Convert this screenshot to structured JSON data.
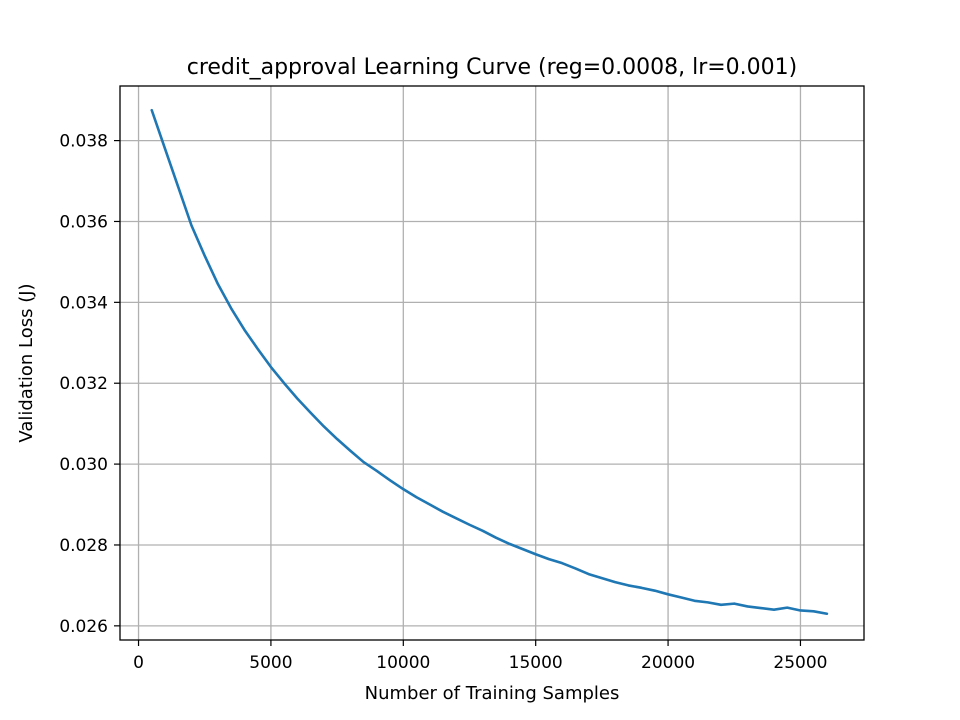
{
  "colors": {
    "series": "#1f77b4",
    "grid": "#b0b0b0",
    "frame": "#000000",
    "background": "#ffffff"
  },
  "chart_data": {
    "type": "line",
    "title": "credit_approval Learning Curve (reg=0.0008, lr=0.001)",
    "xlabel": "Number of Training Samples",
    "ylabel": "Validation Loss (J)",
    "xlim": [
      -700,
      27400
    ],
    "ylim": [
      0.02565,
      0.03935
    ],
    "grid": true,
    "legend": "none",
    "xticks": [
      0,
      5000,
      10000,
      15000,
      20000,
      25000
    ],
    "xtick_labels": [
      "0",
      "5000",
      "10000",
      "15000",
      "20000",
      "25000"
    ],
    "yticks": [
      0.026,
      0.028,
      0.03,
      0.032,
      0.034,
      0.036,
      0.038
    ],
    "ytick_labels": [
      "0.026",
      "0.028",
      "0.030",
      "0.032",
      "0.034",
      "0.036",
      "0.038"
    ],
    "series": [
      {
        "x": [
          500,
          1000,
          1500,
          2000,
          2500,
          3000,
          3500,
          4000,
          4500,
          5000,
          5500,
          6000,
          6500,
          7000,
          7500,
          8000,
          8500,
          9000,
          9500,
          10000,
          10500,
          11000,
          11500,
          12000,
          12500,
          13000,
          13500,
          14000,
          14500,
          15000,
          15500,
          16000,
          16500,
          17000,
          17500,
          18000,
          18500,
          19000,
          19500,
          20000,
          20500,
          21000,
          21500,
          22000,
          22500,
          23000,
          23500,
          24000,
          24500,
          25000,
          25500,
          26000
        ],
        "y": [
          0.03875,
          0.0378,
          0.03685,
          0.0359,
          0.03515,
          0.03445,
          0.03385,
          0.03332,
          0.03285,
          0.0324,
          0.032,
          0.03162,
          0.03127,
          0.03093,
          0.03062,
          0.03033,
          0.03005,
          0.02983,
          0.0296,
          0.02938,
          0.02918,
          0.029,
          0.02882,
          0.02866,
          0.0285,
          0.02835,
          0.02818,
          0.02803,
          0.0279,
          0.02777,
          0.02765,
          0.02755,
          0.02742,
          0.02728,
          0.02718,
          0.02708,
          0.027,
          0.02694,
          0.02687,
          0.02678,
          0.0267,
          0.02662,
          0.02658,
          0.02652,
          0.02655,
          0.02648,
          0.02644,
          0.0264,
          0.02645,
          0.02638,
          0.02636,
          0.0263
        ]
      }
    ]
  }
}
